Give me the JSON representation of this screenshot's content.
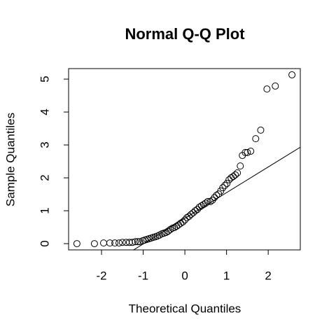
{
  "chart_data": {
    "type": "scatter",
    "title": "Normal Q-Q Plot",
    "x_label": "Theoretical Quantiles",
    "y_label": "Sample Quantiles",
    "xlim": [
      -2.79,
      2.77
    ],
    "ylim": [
      -0.19,
      5.32
    ],
    "xticks": [
      -2,
      -1,
      0,
      1,
      2
    ],
    "yticks": [
      0,
      1,
      2,
      3,
      4,
      5
    ],
    "color": "#000000",
    "x": [
      -2.59,
      -2.17,
      -1.95,
      -1.8,
      -1.68,
      -1.58,
      -1.5,
      -1.41,
      -1.33,
      -1.26,
      -1.19,
      -1.13,
      -1.08,
      -1.01,
      -0.96,
      -0.91,
      -0.86,
      -0.81,
      -0.76,
      -0.71,
      -0.66,
      -0.61,
      -0.55,
      -0.5,
      -0.45,
      -0.4,
      -0.35,
      -0.3,
      -0.25,
      -0.2,
      -0.15,
      -0.1,
      -0.05,
      0,
      0.05,
      0.1,
      0.15,
      0.2,
      0.25,
      0.3,
      0.35,
      0.4,
      0.45,
      0.5,
      0.55,
      0.61,
      0.66,
      0.71,
      0.76,
      0.81,
      0.86,
      0.91,
      0.96,
      1.01,
      1.06,
      1.11,
      1.16,
      1.21,
      1.26,
      1.33,
      1.38,
      1.45,
      1.5,
      1.58,
      1.7,
      1.82,
      1.97,
      2.17,
      2.57
    ],
    "values": [
      0,
      0,
      0.02,
      0.02,
      0.02,
      0.02,
      0.04,
      0.04,
      0.04,
      0.04,
      0.06,
      0.06,
      0.06,
      0.09,
      0.11,
      0.13,
      0.15,
      0.17,
      0.19,
      0.21,
      0.23,
      0.26,
      0.3,
      0.32,
      0.34,
      0.38,
      0.43,
      0.47,
      0.49,
      0.53,
      0.57,
      0.62,
      0.66,
      0.72,
      0.79,
      0.83,
      0.89,
      0.94,
      1.0,
      1.04,
      1.11,
      1.15,
      1.19,
      1.23,
      1.28,
      1.28,
      1.32,
      1.4,
      1.47,
      1.51,
      1.6,
      1.7,
      1.77,
      1.83,
      1.94,
      2.0,
      2.04,
      2.09,
      2.15,
      2.36,
      2.68,
      2.77,
      2.77,
      2.81,
      3.19,
      3.45,
      4.7,
      4.79,
      5.13
    ],
    "reference_line": {
      "intercept": 0.77,
      "slope": 0.78
    }
  }
}
